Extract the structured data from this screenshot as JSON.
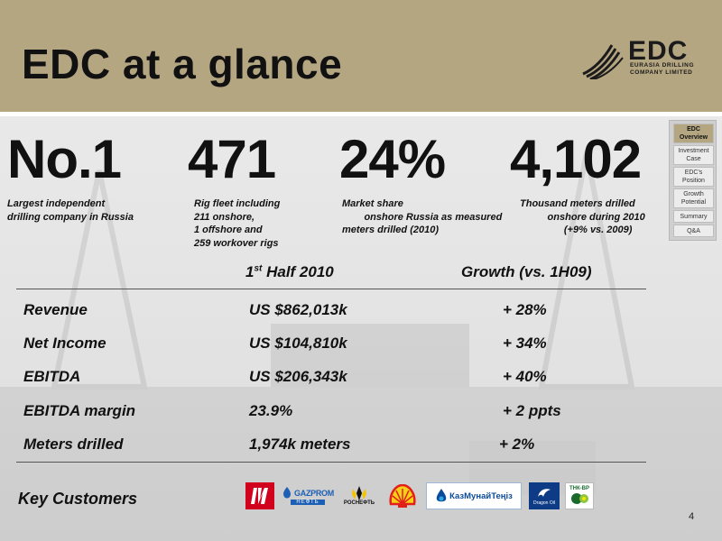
{
  "title": "EDC at a glance",
  "logo": {
    "name": "EDC",
    "subtitle_line1": "EURASIA DRILLING",
    "subtitle_line2": "COMPANY LIMITED"
  },
  "sidenav": [
    {
      "label": "EDC Overview",
      "active": true
    },
    {
      "label": "Investment Case",
      "active": false
    },
    {
      "label": "EDC's Position",
      "active": false
    },
    {
      "label": "Growth Potential",
      "active": false
    },
    {
      "label": "Summary",
      "active": false
    },
    {
      "label": "Q&A",
      "active": false
    }
  ],
  "stats": [
    {
      "value": "No.1",
      "caption": "Largest independent\ndrilling company in Russia"
    },
    {
      "value": "471",
      "caption": "Rig fleet including\n211 onshore,\n1 offshore and\n259 workover rigs"
    },
    {
      "value": "24%",
      "caption": "Market share\n        onshore Russia as measured\nmeters drilled (2010)"
    },
    {
      "value": "4,102",
      "caption": "Thousand meters drilled\n          onshore during 2010\n                (+9% vs. 2009)"
    }
  ],
  "table": {
    "header_period_prefix": "1",
    "header_period_sup": "st",
    "header_period_suffix": " Half  2010",
    "header_growth": "Growth (vs. 1H09)",
    "rows": [
      {
        "label": "Revenue",
        "value": "US $862,013k",
        "growth": "+ 28%"
      },
      {
        "label": "Net Income",
        "value": "US $104,810k",
        "growth": "+ 34%"
      },
      {
        "label": "EBITDA",
        "value": "US $206,343k",
        "growth": "+ 40%"
      },
      {
        "label": "EBITDA margin",
        "value": "23.9%",
        "growth": "+ 2 ppts"
      },
      {
        "label": "Meters drilled",
        "value": "1,974k meters",
        "growth": "+ 2%"
      }
    ]
  },
  "customers": {
    "label": "Key Customers",
    "logos": [
      {
        "name": "LUKOIL",
        "text": "ЛУК",
        "color": "#d1001c"
      },
      {
        "name": "Gazprom Neft",
        "text": "GAZPROM",
        "sub": "НЕФТЬ",
        "color": "#1d5fb4"
      },
      {
        "name": "Rosneft",
        "text": "РОСНЕФТЬ",
        "color": "#111111"
      },
      {
        "name": "Shell",
        "color": "#e2201a"
      },
      {
        "name": "KazMunayGas",
        "text": "КазМунайТеңіз",
        "color": "#0a4a9a"
      },
      {
        "name": "Dragon Oil",
        "text": "Dragon Oil",
        "color": "#0e3b86"
      },
      {
        "name": "TNK-BP",
        "text": "ТНК-BP",
        "color": "#1a6a2e"
      }
    ]
  },
  "page_number": "4",
  "colors": {
    "header_band": "#b5a682",
    "active_nav": "#b5a682",
    "background": "#e3e3e3"
  }
}
